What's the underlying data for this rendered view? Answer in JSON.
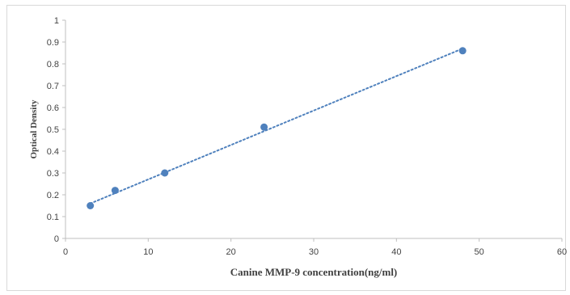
{
  "chart_data": {
    "type": "scatter",
    "title": "",
    "xlabel": "Canine MMP-9 concentration(ng/ml)",
    "ylabel": "Optical Density",
    "xlim": [
      0,
      60
    ],
    "ylim": [
      0,
      1
    ],
    "x_ticks": [
      "0",
      "10",
      "20",
      "30",
      "40",
      "50",
      "60"
    ],
    "y_ticks": [
      "0",
      "0.1",
      "0.2",
      "0.3",
      "0.4",
      "0.5",
      "0.6",
      "0.7",
      "0.8",
      "0.9",
      "1"
    ],
    "grid": false,
    "legend": "none",
    "series": [
      {
        "x": [
          3,
          6,
          12,
          24,
          48
        ],
        "y": [
          0.15,
          0.22,
          0.3,
          0.51,
          0.86
        ],
        "color": "#4f81bd"
      }
    ],
    "trendline": {
      "style": "dotted",
      "color": "#4f81bd",
      "x": [
        3,
        48
      ],
      "y": [
        0.16,
        0.87
      ]
    }
  }
}
